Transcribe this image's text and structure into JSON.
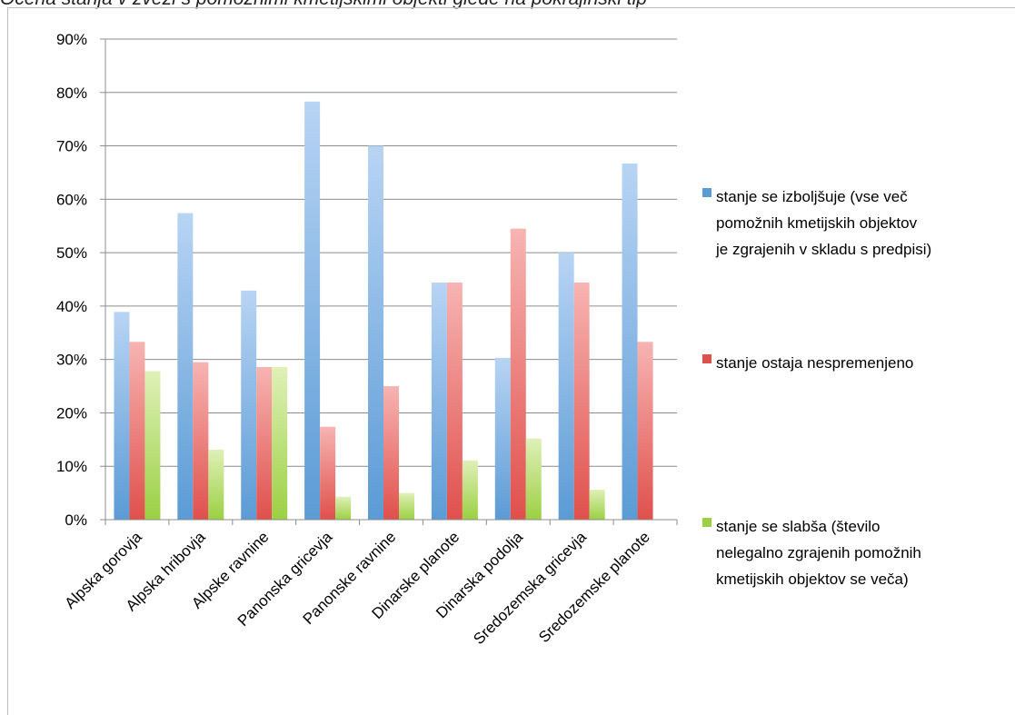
{
  "caption": "Ocena stanja v zvezi s pomožnimi kmetijskimi objekti glede na pokrajinski tip",
  "chart_data": {
    "type": "bar",
    "title": "",
    "xlabel": "",
    "ylabel": "",
    "ylim": [
      0,
      90
    ],
    "yticks": [
      0,
      10,
      20,
      30,
      40,
      50,
      60,
      70,
      80,
      90
    ],
    "ytick_suffix": "%",
    "grid": true,
    "legend_position": "right",
    "categories": [
      "Alpska gorovja",
      "Alpska hribovja",
      "Alpske ravnine",
      "Panonska gricevja",
      "Panonske ravnine",
      "Dinarske planote",
      "Dinarska podolja",
      "Sredozemska gricevja",
      "Sredozemske planote"
    ],
    "series": [
      {
        "name": "stanje se izboljšuje (vse več pomožnih kmetijskih objektov je zgrajenih v skladu s predpisi)",
        "legend_lines": [
          "stanje se izboljšuje (vse več",
          "pomožnih kmetijskih objektov",
          "je zgrajenih v skladu s predpisi)"
        ],
        "color": "#5b9bd5",
        "color_light": "#b8d4f4",
        "values": [
          38.9,
          57.4,
          42.9,
          78.3,
          70.0,
          44.4,
          30.3,
          50.0,
          66.7
        ]
      },
      {
        "name": "stanje ostaja nespremenjeno",
        "legend_lines": [
          "stanje ostaja nespremenjeno"
        ],
        "color": "#e0504c",
        "color_light": "#f7b4b2",
        "values": [
          33.3,
          29.5,
          28.6,
          17.4,
          25.0,
          44.4,
          54.5,
          44.4,
          33.3
        ]
      },
      {
        "name": "stanje se slabša (število nelegalno zgrajenih pomožnih kmetijskih objektov se veča)",
        "legend_lines": [
          "stanje se slabša (število",
          "nelegalno zgrajenih pomožnih",
          "kmetijskih objektov se veča)"
        ],
        "color": "#9bd043",
        "color_light": "#dff0b8",
        "values": [
          27.8,
          13.1,
          28.6,
          4.3,
          5.0,
          11.1,
          15.2,
          5.6,
          0
        ]
      }
    ]
  }
}
